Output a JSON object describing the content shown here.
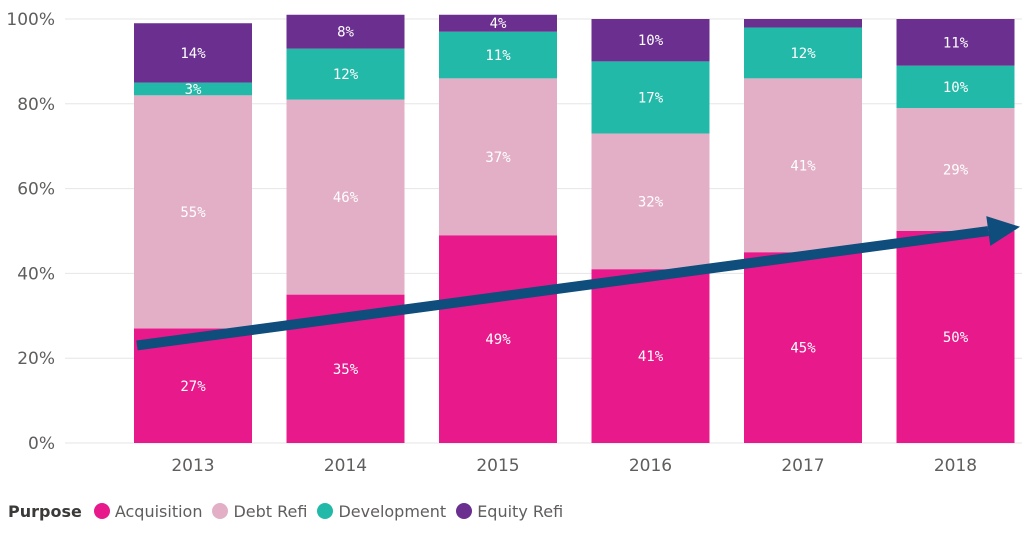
{
  "chart_data": {
    "type": "bar",
    "stacked": true,
    "categories": [
      "2013",
      "2014",
      "2015",
      "2016",
      "2017",
      "2018"
    ],
    "yticks": [
      "0%",
      "20%",
      "40%",
      "60%",
      "80%",
      "100%"
    ],
    "ylim": [
      0,
      100
    ],
    "grid": true,
    "legend": {
      "title": "Purpose",
      "placement": "bottom-left"
    },
    "series": [
      {
        "name": "Acquisition",
        "color": "#e8198b",
        "values": [
          27,
          35,
          49,
          41,
          45,
          50
        ],
        "labels": [
          "27%",
          "35%",
          "49%",
          "41%",
          "45%",
          "50%"
        ]
      },
      {
        "name": "Debt Refi",
        "color": "#e2afc6",
        "values": [
          55,
          46,
          37,
          32,
          41,
          29
        ],
        "labels": [
          "55%",
          "46%",
          "37%",
          "32%",
          "41%",
          "29%"
        ]
      },
      {
        "name": "Development",
        "color": "#23b9a8",
        "values": [
          3,
          12,
          11,
          17,
          12,
          10
        ],
        "labels": [
          "3%",
          "12%",
          "11%",
          "17%",
          "12%",
          "10%"
        ]
      },
      {
        "name": "Equity Refi",
        "color": "#6b2f8f",
        "values": [
          14,
          8,
          4,
          10,
          2,
          11
        ],
        "labels": [
          "14%",
          "8%",
          "4%",
          "10%",
          "",
          "11%"
        ]
      }
    ],
    "trend_arrow": {
      "color": "#0e4d7c",
      "from": [
        2013,
        23
      ],
      "to": [
        2018,
        51
      ]
    }
  }
}
